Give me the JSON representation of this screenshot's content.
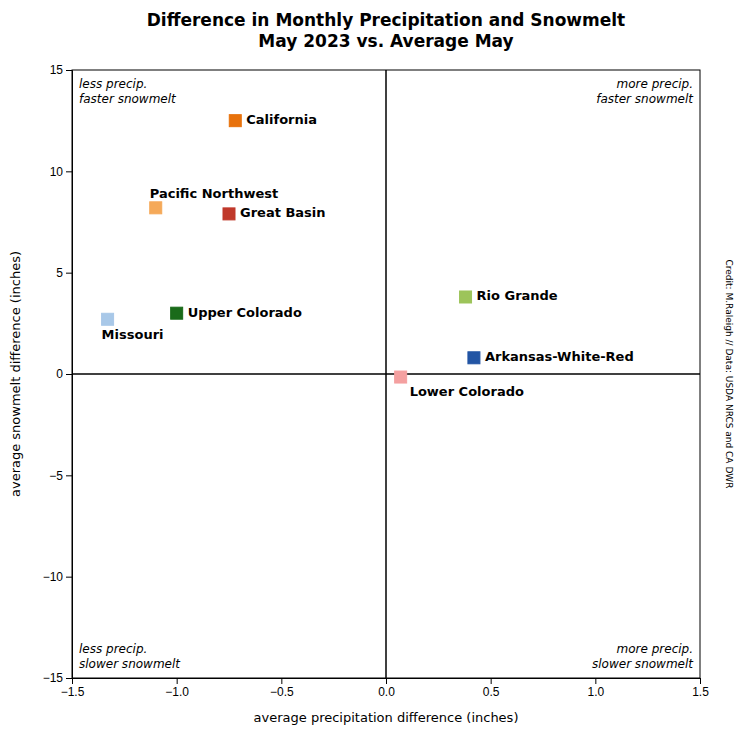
{
  "chart_data": {
    "type": "scatter",
    "title": "Difference in Monthly Precipitation and Snowmelt\nMay 2023 vs. Average May",
    "xlabel": "average precipitation difference (inches)",
    "ylabel": "average snowmelt difference (inches)",
    "xlim": [
      -1.5,
      1.5
    ],
    "ylim": [
      -15,
      15
    ],
    "xticks": [
      {
        "value": -1.5,
        "label": "−1.5"
      },
      {
        "value": -1.0,
        "label": "−1.0"
      },
      {
        "value": -0.5,
        "label": "−0.5"
      },
      {
        "value": 0.0,
        "label": "0.0"
      },
      0.5,
      {
        "value": 1.0,
        "label": "1.0"
      },
      1.5
    ],
    "yticks": [
      {
        "value": -15,
        "label": "−15"
      },
      {
        "value": -10,
        "label": "−10"
      },
      {
        "value": -5,
        "label": "−5"
      },
      0,
      5,
      10,
      15
    ],
    "x": [
      -0.72,
      -1.1,
      -0.75,
      -1.0,
      -1.33,
      0.38,
      0.42,
      0.07
    ],
    "values": [
      12.5,
      8.2,
      7.9,
      3.0,
      2.7,
      3.8,
      0.8,
      -0.15
    ],
    "point_labels": [
      "California",
      "Pacific Northwest",
      "Great Basin",
      "Upper Colorado",
      "Missouri",
      "Rio Grande",
      "Arkansas-White-Red",
      "Lower Colorado"
    ],
    "colors": [
      "#E8720C",
      "#F5A959",
      "#C0392B",
      "#1A6B1A",
      "#A8C8E8",
      "#9DC45A",
      "#2255A4",
      "#F4A0A0"
    ],
    "marker": "square",
    "annotations": [
      "less precip.\nfaster snowmelt",
      "more precip.\nfaster snowmelt",
      "less precip.\nslower snowmelt",
      "more precip.\nslower snowmelt"
    ],
    "caption": "Credit: M.Raleigh // Data: USDA NRCS and CA DWR",
    "hlines": [
      0
    ],
    "vlines": [
      0
    ],
    "grid": false
  }
}
